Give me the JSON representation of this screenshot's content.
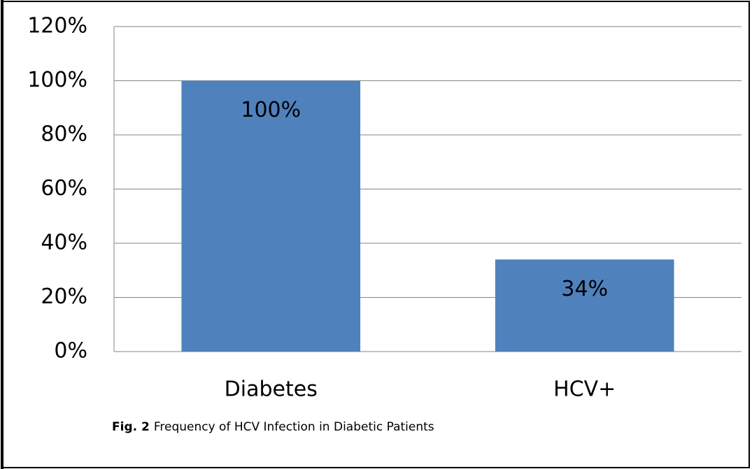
{
  "chart_data": {
    "type": "bar",
    "categories": [
      "Diabetes",
      "HCV+"
    ],
    "values": [
      100,
      34
    ],
    "value_labels": [
      "100%",
      "34%"
    ],
    "color": "#4f81bd",
    "ylim": [
      0,
      120
    ],
    "yticks": [
      {
        "value": 0,
        "label": "0%"
      },
      {
        "value": 20,
        "label": "20%"
      },
      {
        "value": 40,
        "label": "40%"
      },
      {
        "value": 60,
        "label": "60%"
      },
      {
        "value": 80,
        "label": "80%"
      },
      {
        "value": 100,
        "label": "100%"
      },
      {
        "value": 120,
        "label": "120%"
      }
    ],
    "grid": true,
    "caption": {
      "label": "Fig. 2",
      "text": "Frequency of HCV Infection in Diabetic Patients"
    }
  }
}
